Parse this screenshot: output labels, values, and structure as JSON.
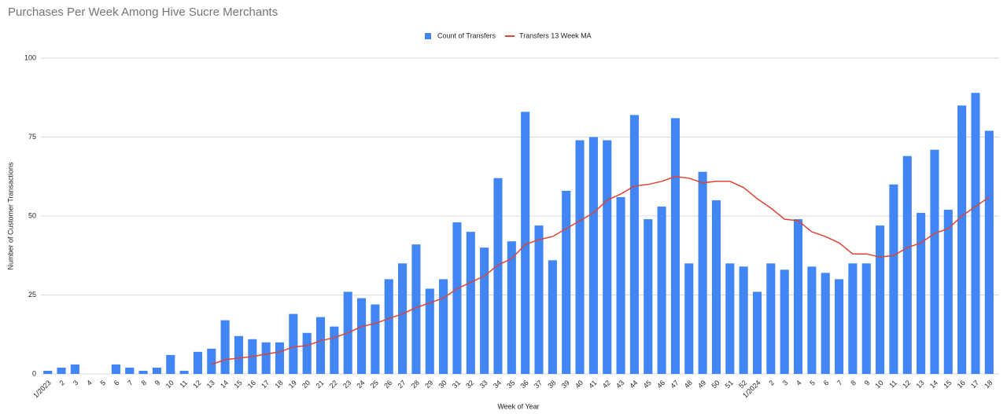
{
  "chart_data": {
    "type": "bar-line",
    "title": "Purchases Per Week Among Hive Sucre Merchants",
    "x_label": "Week of Year",
    "y_label": "Number of Customer Transactions",
    "categories": [
      "1/2023",
      "2",
      "3",
      "4",
      "5",
      "6",
      "7",
      "8",
      "9",
      "10",
      "11",
      "12",
      "13",
      "14",
      "15",
      "16",
      "17",
      "18",
      "19",
      "20",
      "21",
      "22",
      "23",
      "24",
      "25",
      "26",
      "27",
      "28",
      "29",
      "30",
      "31",
      "32",
      "33",
      "34",
      "35",
      "36",
      "37",
      "38",
      "39",
      "40",
      "41",
      "42",
      "43",
      "44",
      "45",
      "46",
      "47",
      "48",
      "49",
      "50",
      "51",
      "52",
      "1/2024",
      "2",
      "3",
      "4",
      "5",
      "6",
      "7",
      "8",
      "9",
      "10",
      "11",
      "12",
      "13",
      "14",
      "15",
      "16",
      "17",
      "18"
    ],
    "series": [
      {
        "name": "Count of Transfers",
        "type": "bar",
        "color": "#4285f4",
        "values": [
          1,
          2,
          3,
          0,
          0,
          3,
          2,
          1,
          2,
          6,
          1,
          7,
          8,
          17,
          12,
          11,
          10,
          10,
          19,
          13,
          18,
          15,
          26,
          24,
          22,
          30,
          35,
          41,
          27,
          30,
          48,
          45,
          40,
          62,
          42,
          83,
          47,
          36,
          58,
          74,
          75,
          74,
          56,
          82,
          49,
          53,
          81,
          35,
          64,
          55,
          35,
          34,
          26,
          35,
          33,
          49,
          34,
          32,
          30,
          35,
          35,
          47,
          60,
          69,
          51,
          71,
          52,
          85,
          89,
          77
        ]
      },
      {
        "name": "Transfers 13 Week MA",
        "type": "line",
        "color": "#db4437",
        "values": [
          null,
          null,
          null,
          null,
          null,
          null,
          null,
          null,
          null,
          null,
          null,
          null,
          3,
          4.5,
          5,
          5.5,
          6.3,
          7,
          8.5,
          9,
          10.5,
          11.5,
          13,
          15,
          16,
          17.5,
          19,
          21,
          22.5,
          24,
          27,
          29,
          31,
          34.5,
          36.5,
          41,
          42.5,
          43.5,
          46,
          48.5,
          51,
          55,
          57,
          59.5,
          60,
          61,
          62.5,
          62,
          60.5,
          61,
          61,
          59,
          55.5,
          52.5,
          49,
          48.5,
          45,
          43.5,
          41.5,
          38,
          38,
          37,
          37.5,
          40,
          41.5,
          44.5,
          46,
          50,
          53,
          56
        ]
      }
    ],
    "ylim": [
      0,
      100
    ],
    "yticks": [
      0,
      25,
      50,
      75,
      100
    ],
    "grid": true,
    "legend": "top"
  }
}
